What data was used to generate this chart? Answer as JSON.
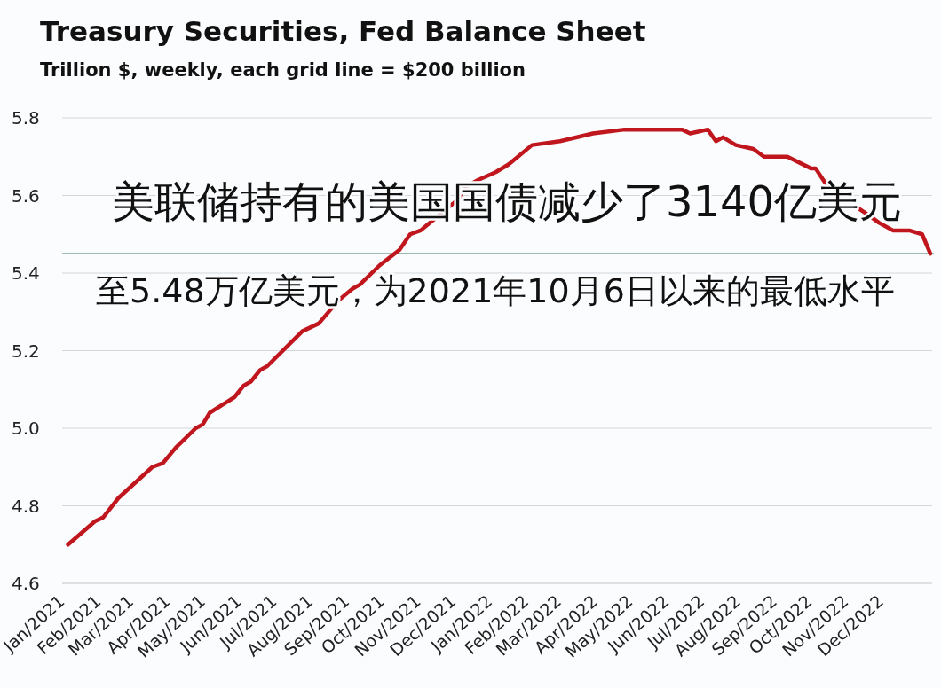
{
  "chart_data": {
    "type": "line",
    "title": "Treasury Securities, Fed Balance Sheet",
    "subtitle": "Trillion $, weekly, each grid line = $200 billion",
    "annotations": [
      "美联储持有的美国国债减少了3140亿美元",
      "至5.48万亿美元，为2021年10月6日以来的最低水平"
    ],
    "x": [
      "2021-01-06",
      "2021-01-29",
      "2021-02-05",
      "2021-02-18",
      "2021-03-19",
      "2021-03-28",
      "2021-04-08",
      "2021-04-25",
      "2021-05-01",
      "2021-05-07",
      "2021-05-28",
      "2021-06-05",
      "2021-06-11",
      "2021-06-19",
      "2021-06-25",
      "2021-07-25",
      "2021-08-08",
      "2021-08-25",
      "2021-09-06",
      "2021-09-12",
      "2021-09-29",
      "2021-10-16",
      "2021-10-25",
      "2021-11-03",
      "2021-11-23",
      "2021-12-05",
      "2021-12-10",
      "2021-12-22",
      "2022-01-06",
      "2022-01-17",
      "2022-02-06",
      "2022-03-02",
      "2022-03-30",
      "2022-04-26",
      "2022-05-30",
      "2022-06-14",
      "2022-06-21",
      "2022-07-06",
      "2022-07-13",
      "2022-07-19",
      "2022-07-30",
      "2022-08-14",
      "2022-08-23",
      "2022-09-12",
      "2022-10-02",
      "2022-10-06",
      "2022-10-17",
      "2022-10-31",
      "2022-11-20",
      "2022-11-29",
      "2022-12-11",
      "2022-12-25",
      "2023-01-05",
      "2023-01-12"
    ],
    "series": [
      {
        "color": "#c0161e",
        "values": [
          4.7,
          4.76,
          4.77,
          4.82,
          4.9,
          4.91,
          4.95,
          5.0,
          5.01,
          5.04,
          5.08,
          5.11,
          5.12,
          5.15,
          5.16,
          5.25,
          5.27,
          5.33,
          5.36,
          5.37,
          5.42,
          5.46,
          5.5,
          5.51,
          5.56,
          5.59,
          5.62,
          5.64,
          5.66,
          5.68,
          5.73,
          5.74,
          5.76,
          5.77,
          5.77,
          5.77,
          5.76,
          5.77,
          5.74,
          5.75,
          5.73,
          5.72,
          5.7,
          5.7,
          5.67,
          5.67,
          5.62,
          5.59,
          5.55,
          5.53,
          5.51,
          5.51,
          5.5,
          5.45
        ]
      }
    ],
    "xlim": [
      "2021-01-01",
      "2023-01-12"
    ],
    "ylim": [
      4.6,
      5.8
    ],
    "xticks": [
      {
        "value": "2021-01-01",
        "label": "Jan/2021"
      },
      {
        "value": "2021-02-01",
        "label": "Feb/2021"
      },
      {
        "value": "2021-03-01",
        "label": "Mar/2021"
      },
      {
        "value": "2021-04-01",
        "label": "Apr/2021"
      },
      {
        "value": "2021-05-01",
        "label": "May/2021"
      },
      {
        "value": "2021-06-01",
        "label": "Jun/2021"
      },
      {
        "value": "2021-07-01",
        "label": "Jul/2021"
      },
      {
        "value": "2021-08-01",
        "label": "Aug/2021"
      },
      {
        "value": "2021-09-01",
        "label": "Sep/2021"
      },
      {
        "value": "2021-10-01",
        "label": "Oct/2021"
      },
      {
        "value": "2021-11-01",
        "label": "Nov/2021"
      },
      {
        "value": "2021-12-01",
        "label": "Dec/2021"
      },
      {
        "value": "2022-01-01",
        "label": "Jan/2022"
      },
      {
        "value": "2022-02-01",
        "label": "Feb/2022"
      },
      {
        "value": "2022-03-01",
        "label": "Mar/2022"
      },
      {
        "value": "2022-04-01",
        "label": "Apr/2022"
      },
      {
        "value": "2022-05-01",
        "label": "May/2022"
      },
      {
        "value": "2022-06-01",
        "label": "Jun/2022"
      },
      {
        "value": "2022-07-01",
        "label": "Jul/2022"
      },
      {
        "value": "2022-08-01",
        "label": "Aug/2022"
      },
      {
        "value": "2022-09-01",
        "label": "Sep/2022"
      },
      {
        "value": "2022-10-01",
        "label": "Oct/2022"
      },
      {
        "value": "2022-11-01",
        "label": "Nov/2022"
      },
      {
        "value": "2022-12-01",
        "label": "Dec/2022"
      }
    ],
    "yticks": [
      {
        "value": 4.6,
        "label": "4.6"
      },
      {
        "value": 4.8,
        "label": "4.8"
      },
      {
        "value": 5.0,
        "label": "5.0"
      },
      {
        "value": 5.2,
        "label": "5.2"
      },
      {
        "value": 5.4,
        "label": "5.4"
      },
      {
        "value": 5.6,
        "label": "5.6"
      },
      {
        "value": 5.8,
        "label": "5.8"
      }
    ],
    "grid": "y",
    "ref_lines": [
      {
        "axis": "y",
        "value": 5.45,
        "color": "#3f7a6a"
      }
    ]
  }
}
